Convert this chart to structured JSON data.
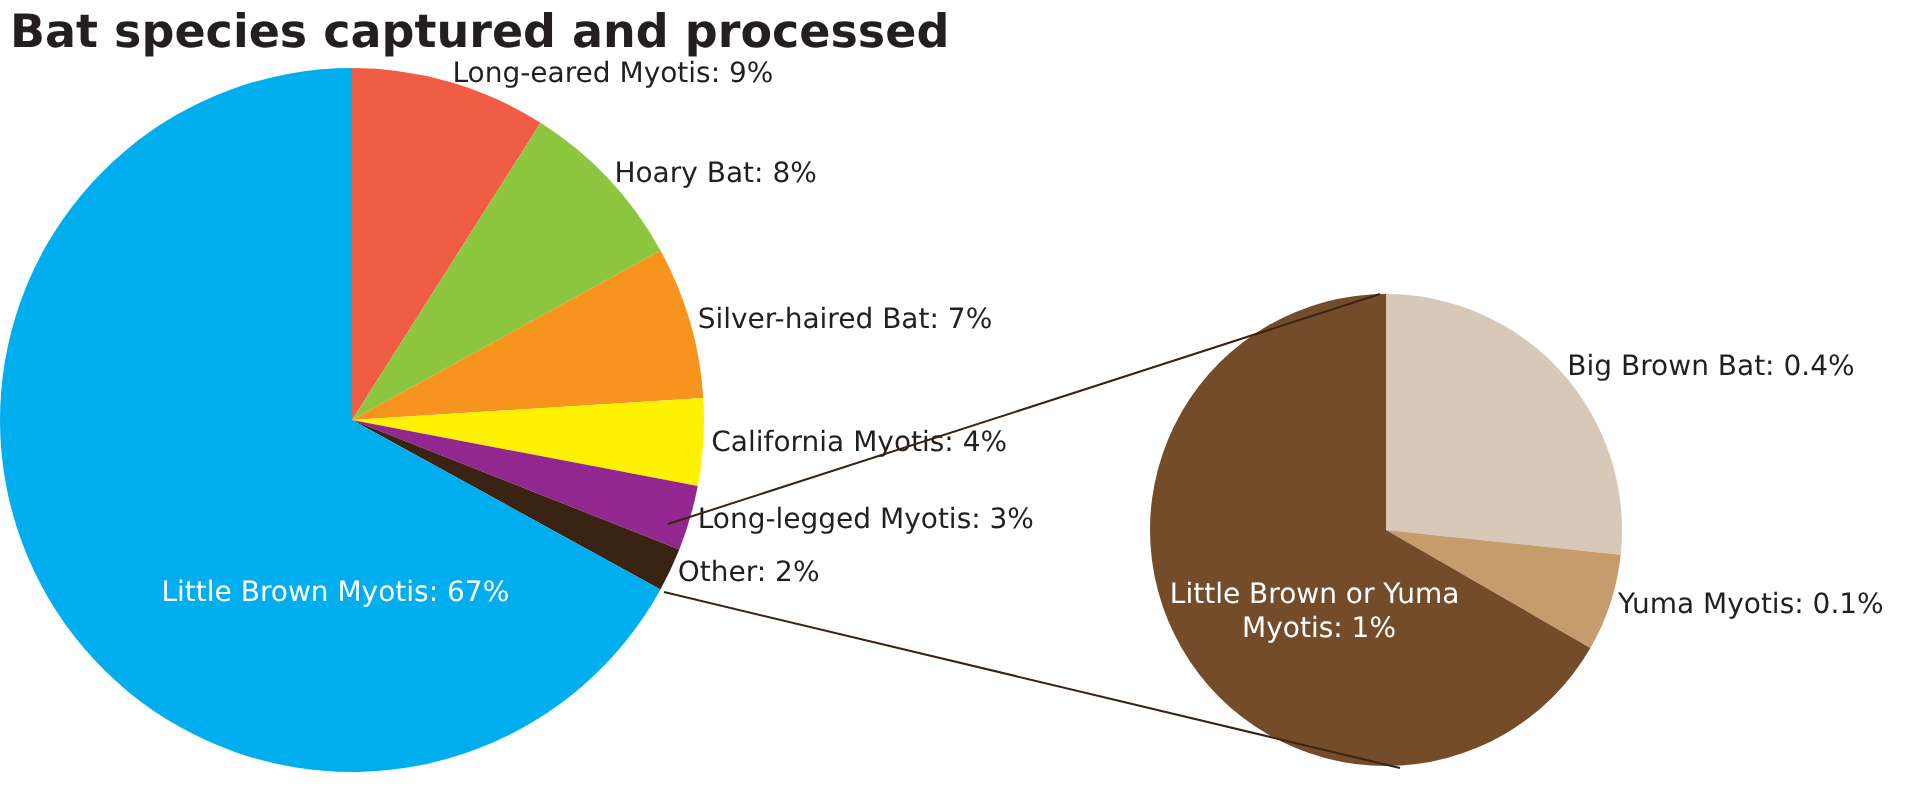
{
  "chart_data": [
    {
      "type": "pie",
      "title": "Bat species captured and processed",
      "categories": [
        "Long-eared Myotis",
        "Hoary Bat",
        "Silver-haired Bat",
        "California Myotis",
        "Long-legged Myotis",
        "Other",
        "Little Brown Myotis"
      ],
      "values": [
        9,
        8,
        7,
        4,
        3,
        2,
        67
      ],
      "value_labels": [
        "9%",
        "8%",
        "7%",
        "4%",
        "3%",
        "2%",
        "67%"
      ],
      "colors": [
        "#f15d44",
        "#8dc63f",
        "#f7941d",
        "#fff200",
        "#92278f",
        "#3b2314",
        "#00aeef"
      ]
    },
    {
      "type": "pie",
      "categories": [
        "Big Brown Bat",
        "Yuma Myotis",
        "Little Brown or Yuma Myotis"
      ],
      "values": [
        0.4,
        0.1,
        1
      ],
      "value_labels": [
        "0.4%",
        "0.1%",
        "1%"
      ],
      "colors": [
        "#d8c8b8",
        "#c69c6d",
        "#754c29"
      ]
    }
  ]
}
